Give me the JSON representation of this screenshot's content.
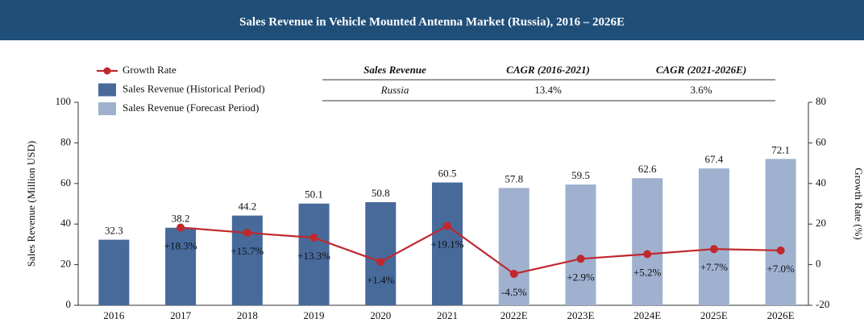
{
  "chart_data": {
    "type": "bar",
    "title": "Sales Revenue in Vehicle Mounted Antenna Market (Russia), 2016 – 2026E",
    "categories": [
      "2016",
      "2017",
      "2018",
      "2019",
      "2020",
      "2021",
      "2022E",
      "2023E",
      "2024E",
      "2025E",
      "2026E"
    ],
    "series": [
      {
        "name": "Sales Revenue (Historical Period)",
        "color": "#476a9b",
        "values": [
          32.3,
          38.2,
          44.2,
          50.1,
          50.8,
          60.5,
          null,
          null,
          null,
          null,
          null
        ]
      },
      {
        "name": "Sales Revenue (Forecast Period)",
        "color": "#9fb1cf",
        "values": [
          null,
          null,
          null,
          null,
          null,
          null,
          57.8,
          59.5,
          62.6,
          67.4,
          72.1
        ]
      },
      {
        "name": "Growth Rate",
        "color": "#c0282d",
        "type": "line",
        "axis": "y2",
        "values": [
          null,
          18.3,
          15.7,
          13.3,
          1.4,
          19.1,
          -4.5,
          2.9,
          5.2,
          7.7,
          7.0
        ],
        "value_labels": [
          null,
          "+18.3%",
          "+15.7%",
          "+13.3%",
          "+1.4%",
          "+19.1%",
          "-4.5%",
          "+2.9%",
          "+5.2%",
          "+7.7%",
          "+7.0%"
        ]
      }
    ],
    "ylabel": "Sales Revenue (Million USD)",
    "y2label": "Growth Rate (%)",
    "ylim": [
      0,
      100
    ],
    "yticks": [
      0,
      20,
      40,
      60,
      80,
      100
    ],
    "y2lim": [
      -20,
      80
    ],
    "y2ticks": [
      -20,
      0,
      20,
      40,
      60,
      80
    ],
    "table": {
      "header": [
        "Sales Revenue",
        "CAGR (2016-2021)",
        "CAGR (2021-2026E)"
      ],
      "rows": [
        [
          "Russia",
          "13.4%",
          "3.6%"
        ]
      ]
    }
  }
}
